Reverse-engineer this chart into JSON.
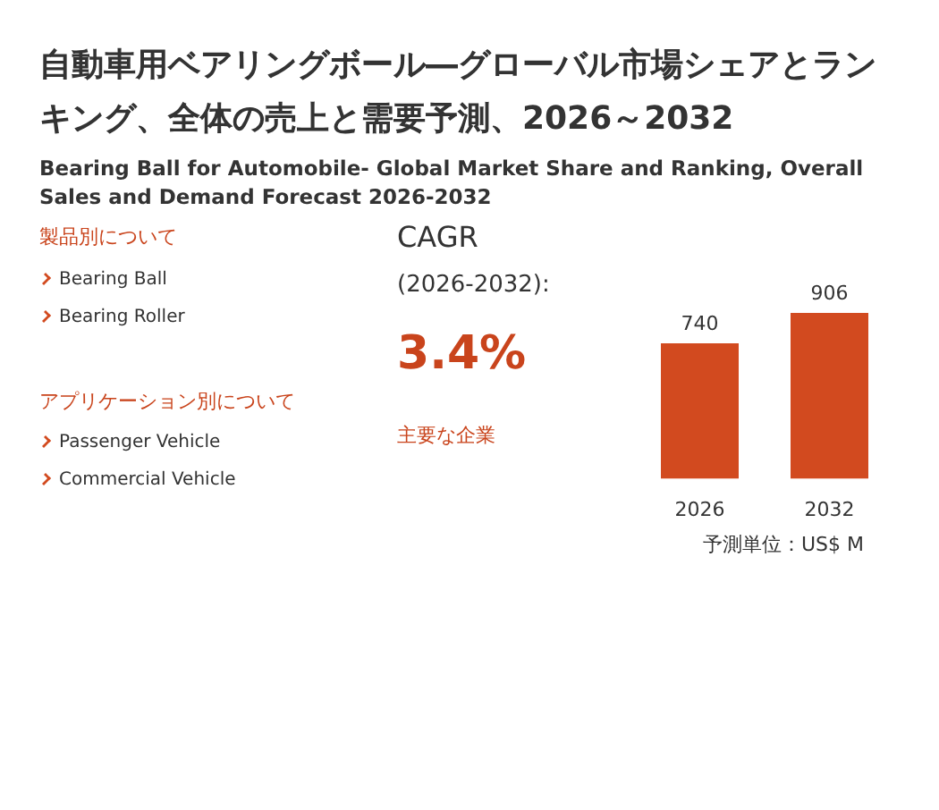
{
  "chart_data": {
    "type": "bar",
    "title": "自動車用ベアリングボール―グローバル市場シェアとランキング、全体の売上と需要予測、2026～2032",
    "subtitle": "Bearing Ball for Automobile- Global Market Share and Ranking, Overall Sales and Demand Forecast 2026-2032",
    "categories": [
      "2026",
      "2032"
    ],
    "values": [
      740,
      906
    ],
    "color": "#d24a1f",
    "data_labels": true,
    "annotations": [
      "製品別について",
      "Bearing Ball",
      "Bearing Roller",
      "アプリケーション別について",
      "Passenger Vehicle",
      "Commercial Vehicle",
      "CAGR",
      "(2026-2032):",
      "3.4%",
      "主要な企業",
      "予測単位：US$ M"
    ]
  }
}
